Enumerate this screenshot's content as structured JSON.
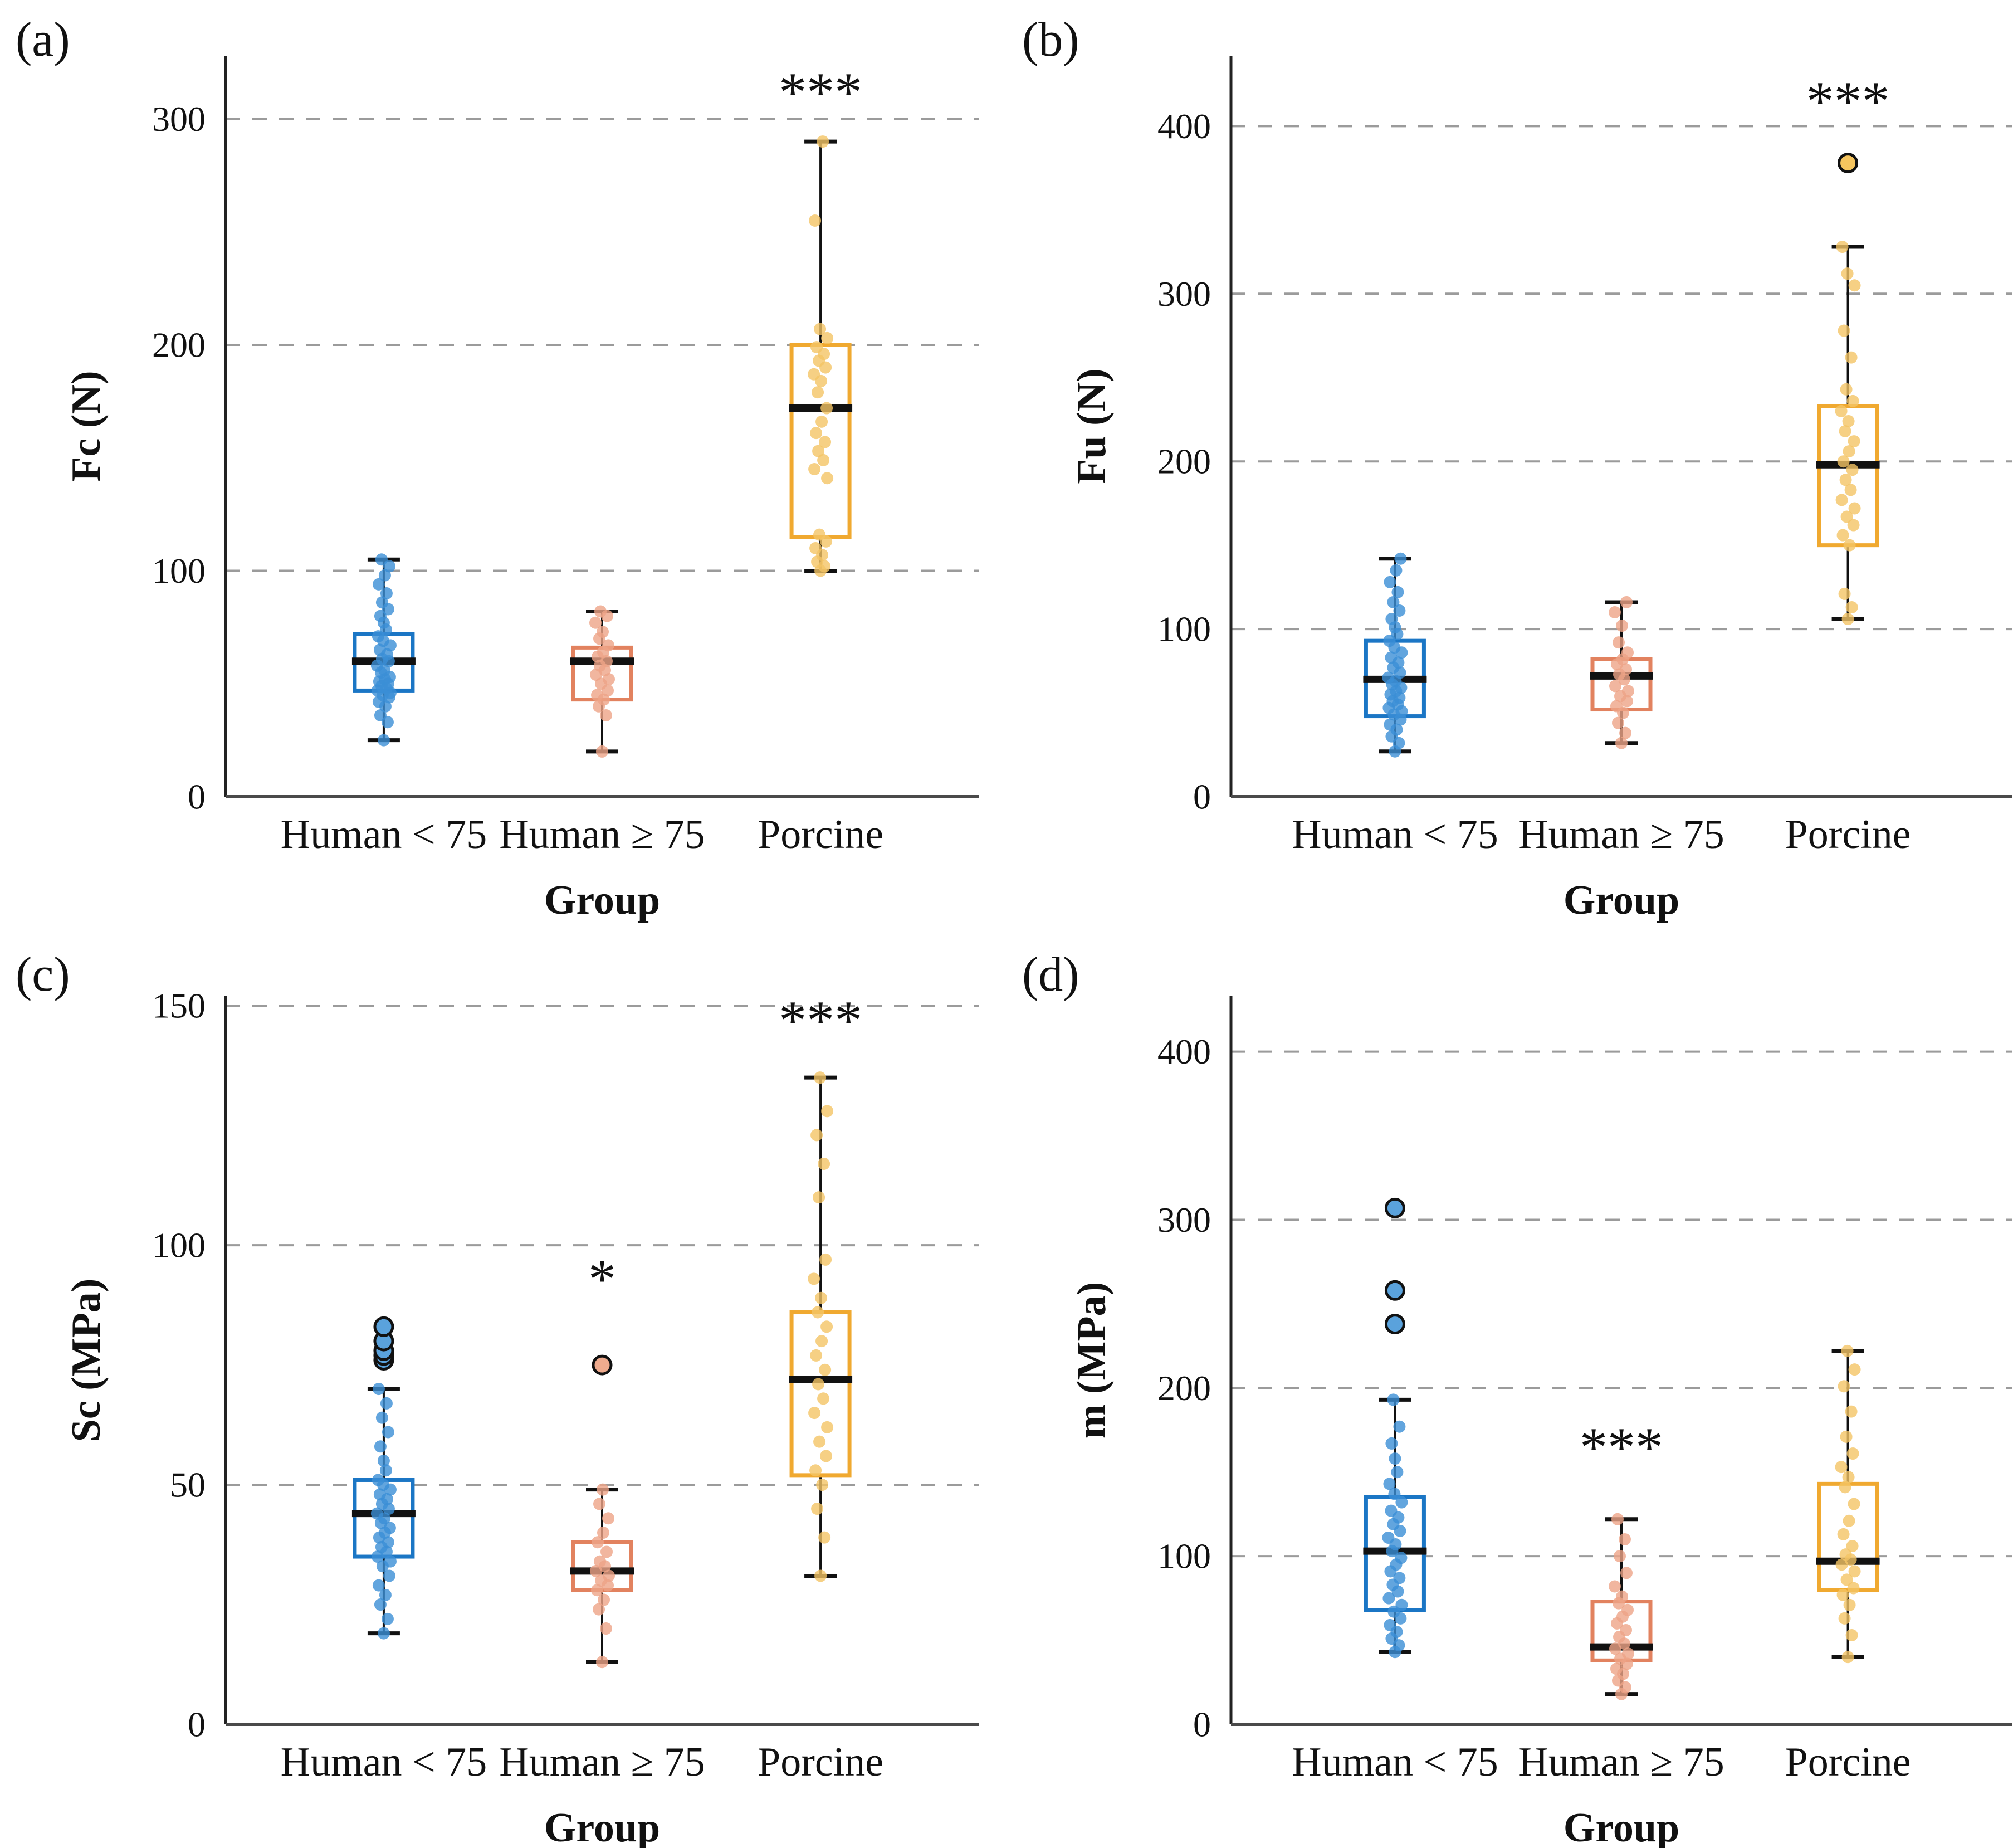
{
  "colors": {
    "blue": {
      "stroke": "#1b76c5",
      "point": "#3b8ed6",
      "outlier_fill": "#5aa2dc"
    },
    "salmon": {
      "stroke": "#e2825f",
      "point": "#eda487",
      "outlier_fill": "#efab8e"
    },
    "gold": {
      "stroke": "#f0a930",
      "point": "#f4c465",
      "outlier_fill": "#f6c55e"
    },
    "median": "#111111",
    "grid": "#9b9b9b",
    "spine_x": "#4a4a4a",
    "spine_y": "#222222",
    "whisker": "#111111"
  },
  "chart_data": [
    {
      "type": "box",
      "label": "(a)",
      "ylabel": "Fc (N)",
      "xlabel": "Group",
      "categories": [
        "Human < 75",
        "Human ≥ 75",
        "Porcine"
      ],
      "yticks": [
        0,
        100,
        200,
        300
      ],
      "ylim": [
        0,
        328
      ],
      "grid": "dashed-horizontal",
      "groups": [
        {
          "name": "Human < 75",
          "color": "blue",
          "box": {
            "whisker_low": 25,
            "q1": 47,
            "median": 60,
            "q3": 72,
            "whisker_high": 105
          },
          "points": [
            25,
            33,
            36,
            40,
            42,
            44,
            45,
            46,
            47,
            48,
            49,
            50,
            51,
            52,
            53,
            55,
            56,
            58,
            60,
            61,
            63,
            65,
            67,
            69,
            71,
            74,
            77,
            80,
            83,
            86,
            90,
            94,
            98,
            102,
            105
          ],
          "outliers": [],
          "annotation": null
        },
        {
          "name": "Human ≥ 75",
          "color": "salmon",
          "box": {
            "whisker_low": 20,
            "q1": 43,
            "median": 60,
            "q3": 66,
            "whisker_high": 82
          },
          "points": [
            20,
            36,
            40,
            43,
            45,
            47,
            50,
            52,
            54,
            56,
            58,
            60,
            62,
            64,
            67,
            70,
            73,
            77,
            80,
            82
          ],
          "outliers": [],
          "annotation": null
        },
        {
          "name": "Porcine",
          "color": "gold",
          "box": {
            "whisker_low": 100,
            "q1": 115,
            "median": 172,
            "q3": 200,
            "whisker_high": 290
          },
          "points": [
            100,
            102,
            104,
            107,
            110,
            113,
            116,
            141,
            145,
            149,
            153,
            157,
            161,
            166,
            172,
            179,
            184,
            187,
            190,
            193,
            196,
            199,
            203,
            207,
            255,
            290
          ],
          "outliers": [],
          "annotation": {
            "text": "***",
            "y": 312
          }
        }
      ]
    },
    {
      "type": "box",
      "label": "(b)",
      "ylabel": "Fu (N)",
      "xlabel": "Group",
      "categories": [
        "Human < 75",
        "Human ≥ 75",
        "Porcine"
      ],
      "yticks": [
        0,
        100,
        200,
        300,
        400
      ],
      "ylim": [
        0,
        442
      ],
      "grid": "dashed-horizontal",
      "groups": [
        {
          "name": "Human < 75",
          "color": "blue",
          "box": {
            "whisker_low": 27,
            "q1": 48,
            "median": 70,
            "q3": 93,
            "whisker_high": 142
          },
          "points": [
            27,
            32,
            36,
            40,
            43,
            46,
            49,
            51,
            53,
            55,
            57,
            59,
            61,
            63,
            65,
            67,
            69,
            71,
            74,
            77,
            80,
            83,
            86,
            89,
            93,
            97,
            101,
            106,
            111,
            116,
            122,
            128,
            135,
            142
          ],
          "outliers": [],
          "annotation": null
        },
        {
          "name": "Human ≥ 75",
          "color": "salmon",
          "box": {
            "whisker_low": 32,
            "q1": 52,
            "median": 72,
            "q3": 82,
            "whisker_high": 116
          },
          "points": [
            32,
            38,
            44,
            50,
            54,
            57,
            60,
            63,
            66,
            70,
            73,
            76,
            79,
            82,
            86,
            92,
            102,
            110,
            116
          ],
          "outliers": [],
          "annotation": null
        },
        {
          "name": "Porcine",
          "color": "gold",
          "box": {
            "whisker_low": 106,
            "q1": 150,
            "median": 198,
            "q3": 233,
            "whisker_high": 328
          },
          "points": [
            106,
            113,
            121,
            150,
            156,
            162,
            167,
            172,
            177,
            183,
            189,
            195,
            200,
            206,
            212,
            218,
            224,
            230,
            236,
            243,
            262,
            278,
            305,
            312,
            328
          ],
          "outliers": [
            378
          ],
          "annotation": {
            "text": "***",
            "y": 415
          }
        }
      ]
    },
    {
      "type": "box",
      "label": "(c)",
      "ylabel": "Sc (MPa)",
      "xlabel": "Group",
      "categories": [
        "Human < 75",
        "Human ≥ 75",
        "Porcine"
      ],
      "yticks": [
        0,
        50,
        100,
        150
      ],
      "ylim": [
        0,
        152
      ],
      "grid": "dashed-horizontal",
      "groups": [
        {
          "name": "Human < 75",
          "color": "blue",
          "box": {
            "whisker_low": 19,
            "q1": 35,
            "median": 44,
            "q3": 51,
            "whisker_high": 70
          },
          "points": [
            19,
            22,
            25,
            27,
            29,
            31,
            33,
            34,
            35,
            36,
            37,
            38,
            39,
            40,
            41,
            42,
            43,
            44,
            45,
            46,
            47,
            48,
            49,
            50,
            51,
            53,
            55,
            58,
            61,
            64,
            67,
            70
          ],
          "outliers": [
            76,
            77,
            78,
            80,
            83
          ],
          "annotation": null
        },
        {
          "name": "Human ≥ 75",
          "color": "salmon",
          "box": {
            "whisker_low": 13,
            "q1": 28,
            "median": 32,
            "q3": 38,
            "whisker_high": 49
          },
          "points": [
            13,
            20,
            24,
            26,
            28,
            29,
            30,
            31,
            32,
            33,
            34,
            36,
            38,
            40,
            43,
            46,
            49
          ],
          "outliers": [
            75
          ],
          "annotation": {
            "text": "*",
            "y": 93
          }
        },
        {
          "name": "Porcine",
          "color": "gold",
          "box": {
            "whisker_low": 31,
            "q1": 52,
            "median": 72,
            "q3": 86,
            "whisker_high": 135
          },
          "points": [
            31,
            39,
            45,
            50,
            53,
            56,
            59,
            62,
            65,
            68,
            71,
            74,
            77,
            80,
            83,
            86,
            89,
            93,
            97,
            110,
            117,
            123,
            128,
            135
          ],
          "outliers": [],
          "annotation": {
            "text": "***",
            "y": 147
          }
        }
      ]
    },
    {
      "type": "box",
      "label": "(d)",
      "ylabel": "m (MPa)",
      "xlabel": "Group",
      "categories": [
        "Human < 75",
        "Human ≥ 75",
        "Porcine"
      ],
      "yticks": [
        0,
        100,
        200,
        300,
        400
      ],
      "ylim": [
        0,
        433
      ],
      "grid": "dashed-horizontal",
      "groups": [
        {
          "name": "Human < 75",
          "color": "blue",
          "box": {
            "whisker_low": 43,
            "q1": 68,
            "median": 103,
            "q3": 135,
            "whisker_high": 193
          },
          "points": [
            43,
            47,
            51,
            55,
            59,
            63,
            67,
            71,
            75,
            79,
            83,
            87,
            91,
            95,
            99,
            103,
            107,
            111,
            115,
            119,
            123,
            127,
            132,
            137,
            143,
            150,
            158,
            167,
            177,
            193
          ],
          "outliers": [
            238,
            258,
            307
          ],
          "annotation": null
        },
        {
          "name": "Human ≥ 75",
          "color": "salmon",
          "box": {
            "whisker_low": 18,
            "q1": 38,
            "median": 46,
            "q3": 73,
            "whisker_high": 122
          },
          "points": [
            18,
            22,
            26,
            30,
            33,
            36,
            39,
            42,
            45,
            48,
            52,
            56,
            60,
            64,
            68,
            72,
            76,
            82,
            90,
            100,
            110,
            122
          ],
          "outliers": [],
          "annotation": {
            "text": "***",
            "y": 165
          }
        },
        {
          "name": "Porcine",
          "color": "gold",
          "box": {
            "whisker_low": 40,
            "q1": 80,
            "median": 97,
            "q3": 143,
            "whisker_high": 222
          },
          "points": [
            40,
            53,
            63,
            71,
            77,
            81,
            86,
            91,
            95,
            98,
            101,
            106,
            113,
            121,
            131,
            141,
            147,
            153,
            161,
            171,
            186,
            201,
            211,
            222
          ],
          "outliers": [],
          "annotation": null
        }
      ]
    }
  ]
}
